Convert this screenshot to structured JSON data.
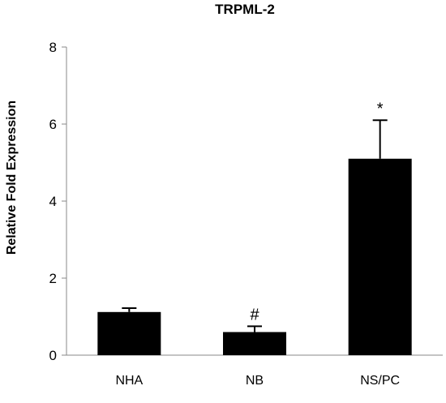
{
  "chart_data": {
    "type": "bar",
    "title": "TRPML-2",
    "xlabel": "",
    "ylabel": "Relative Fold Expression",
    "ylim": [
      0,
      8
    ],
    "yticks": [
      0,
      2,
      4,
      6,
      8
    ],
    "categories": [
      "NHA",
      "NB",
      "NS/PC"
    ],
    "values": [
      1.12,
      0.6,
      5.1
    ],
    "error_upper": [
      0.1,
      0.15,
      1.0
    ],
    "annotations": [
      "",
      "#",
      "*"
    ],
    "bar_color": "#000000",
    "grid": false,
    "legend": "none"
  }
}
